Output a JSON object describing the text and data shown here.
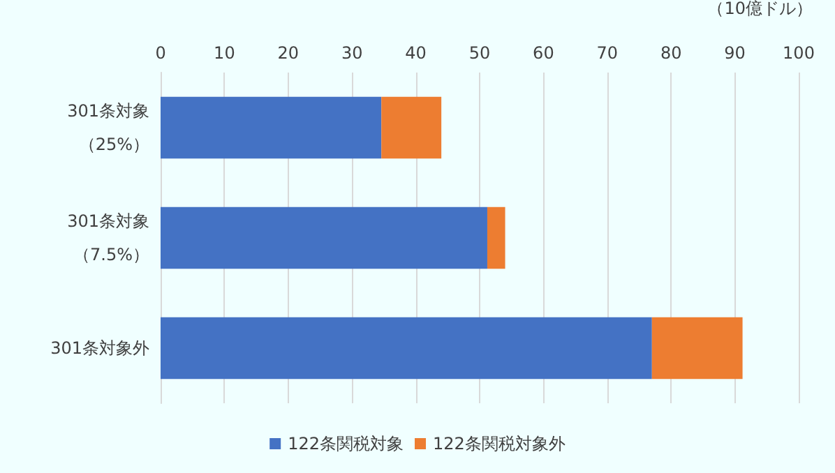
{
  "chart_data": {
    "type": "bar",
    "orientation": "horizontal",
    "stacked": true,
    "xlabel": "（10億ドル）",
    "categories": [
      "301条対象（25%）",
      "301条対象（7.5%）",
      "301条対象外"
    ],
    "series": [
      {
        "name": "122条関税対象",
        "color": "#4472c4",
        "values": [
          34.6,
          51.2,
          77.0
        ]
      },
      {
        "name": "122条関税対象外",
        "color": "#ed7d31",
        "values": [
          9.4,
          2.8,
          14.2
        ]
      }
    ],
    "xlim": [
      0,
      100
    ],
    "xticks": [
      0,
      10,
      20,
      30,
      40,
      50,
      60,
      70,
      80,
      90,
      100
    ],
    "grid": "x",
    "legend": "bottom"
  }
}
